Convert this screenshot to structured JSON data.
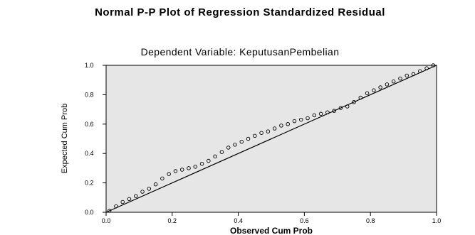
{
  "chart_data": {
    "type": "scatter",
    "title": "Normal P-P Plot of Regression Standardized Residual",
    "subtitle": "Dependent Variable: KeputusanPembelian",
    "xlabel": "Observed Cum Prob",
    "ylabel": "Expected Cum Prob",
    "xlim": [
      0.0,
      1.0
    ],
    "ylim": [
      0.0,
      1.0
    ],
    "x_ticks": [
      "0.0",
      "0.2",
      "0.4",
      "0.6",
      "0.8",
      "1.0"
    ],
    "y_ticks": [
      "0.0",
      "0.2",
      "0.4",
      "0.6",
      "0.8",
      "1.0"
    ],
    "grid": false,
    "plot_background": "#e6e6e6",
    "point_marker": "open-circle",
    "reference_line": {
      "from": [
        0,
        0
      ],
      "to": [
        1,
        1
      ]
    },
    "series": [
      {
        "x": [
          0.01,
          0.03,
          0.05,
          0.07,
          0.09,
          0.11,
          0.13,
          0.15,
          0.17,
          0.19,
          0.21,
          0.23,
          0.25,
          0.27,
          0.29,
          0.31,
          0.33,
          0.35,
          0.37,
          0.39,
          0.41,
          0.43,
          0.45,
          0.47,
          0.49,
          0.51,
          0.53,
          0.55,
          0.57,
          0.59,
          0.61,
          0.63,
          0.65,
          0.67,
          0.69,
          0.71,
          0.73,
          0.75,
          0.77,
          0.79,
          0.81,
          0.83,
          0.85,
          0.87,
          0.89,
          0.91,
          0.93,
          0.95,
          0.97,
          0.99
        ],
        "y": [
          0.01,
          0.04,
          0.07,
          0.09,
          0.11,
          0.14,
          0.16,
          0.19,
          0.23,
          0.26,
          0.28,
          0.29,
          0.3,
          0.31,
          0.33,
          0.35,
          0.38,
          0.41,
          0.44,
          0.46,
          0.48,
          0.5,
          0.52,
          0.54,
          0.55,
          0.57,
          0.59,
          0.6,
          0.62,
          0.63,
          0.64,
          0.66,
          0.67,
          0.68,
          0.69,
          0.71,
          0.72,
          0.75,
          0.78,
          0.81,
          0.83,
          0.85,
          0.87,
          0.89,
          0.91,
          0.93,
          0.94,
          0.96,
          0.98,
          1.0
        ]
      }
    ]
  }
}
